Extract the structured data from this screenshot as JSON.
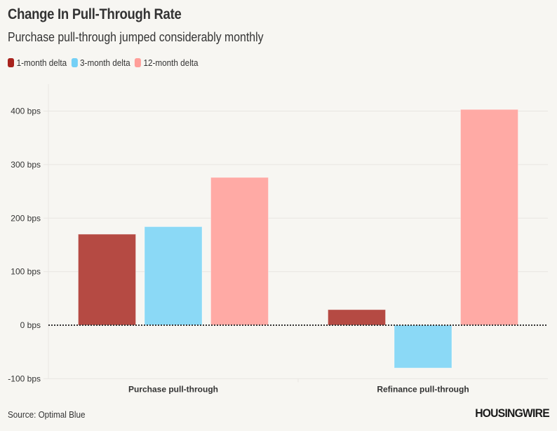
{
  "chart_data": {
    "type": "bar",
    "title": "Change In Pull-Through Rate",
    "subtitle": "Purchase pull-through jumped considerably monthly",
    "categories": [
      "Purchase pull-through",
      "Refinance pull-through"
    ],
    "series": [
      {
        "name": "1-month delta",
        "color": "#b54a43",
        "values": [
          170,
          29
        ]
      },
      {
        "name": "3-month delta",
        "color": "#8bd9f6",
        "values": [
          184,
          -80
        ]
      },
      {
        "name": "12-month delta",
        "color": "#ffaaa5",
        "values": [
          276,
          403
        ]
      }
    ],
    "xlabel": "",
    "ylabel": "",
    "ylim": [
      -100,
      400
    ],
    "yticks": [
      400,
      300,
      200,
      100,
      0,
      -100
    ],
    "ytick_labels": [
      "400 bps",
      "300 bps",
      "200 bps",
      "100 bps",
      "0 bps",
      "-100 bps"
    ],
    "grid": true,
    "zero_line": "dotted",
    "legend_position": "top-left",
    "source": "Source: Optimal Blue"
  },
  "legend_swatch_colors": {
    "one_month": "#a8231d",
    "three_month": "#74d0f6",
    "twelve_month": "#ff9e99"
  },
  "brand": "HOUSINGWIRE"
}
